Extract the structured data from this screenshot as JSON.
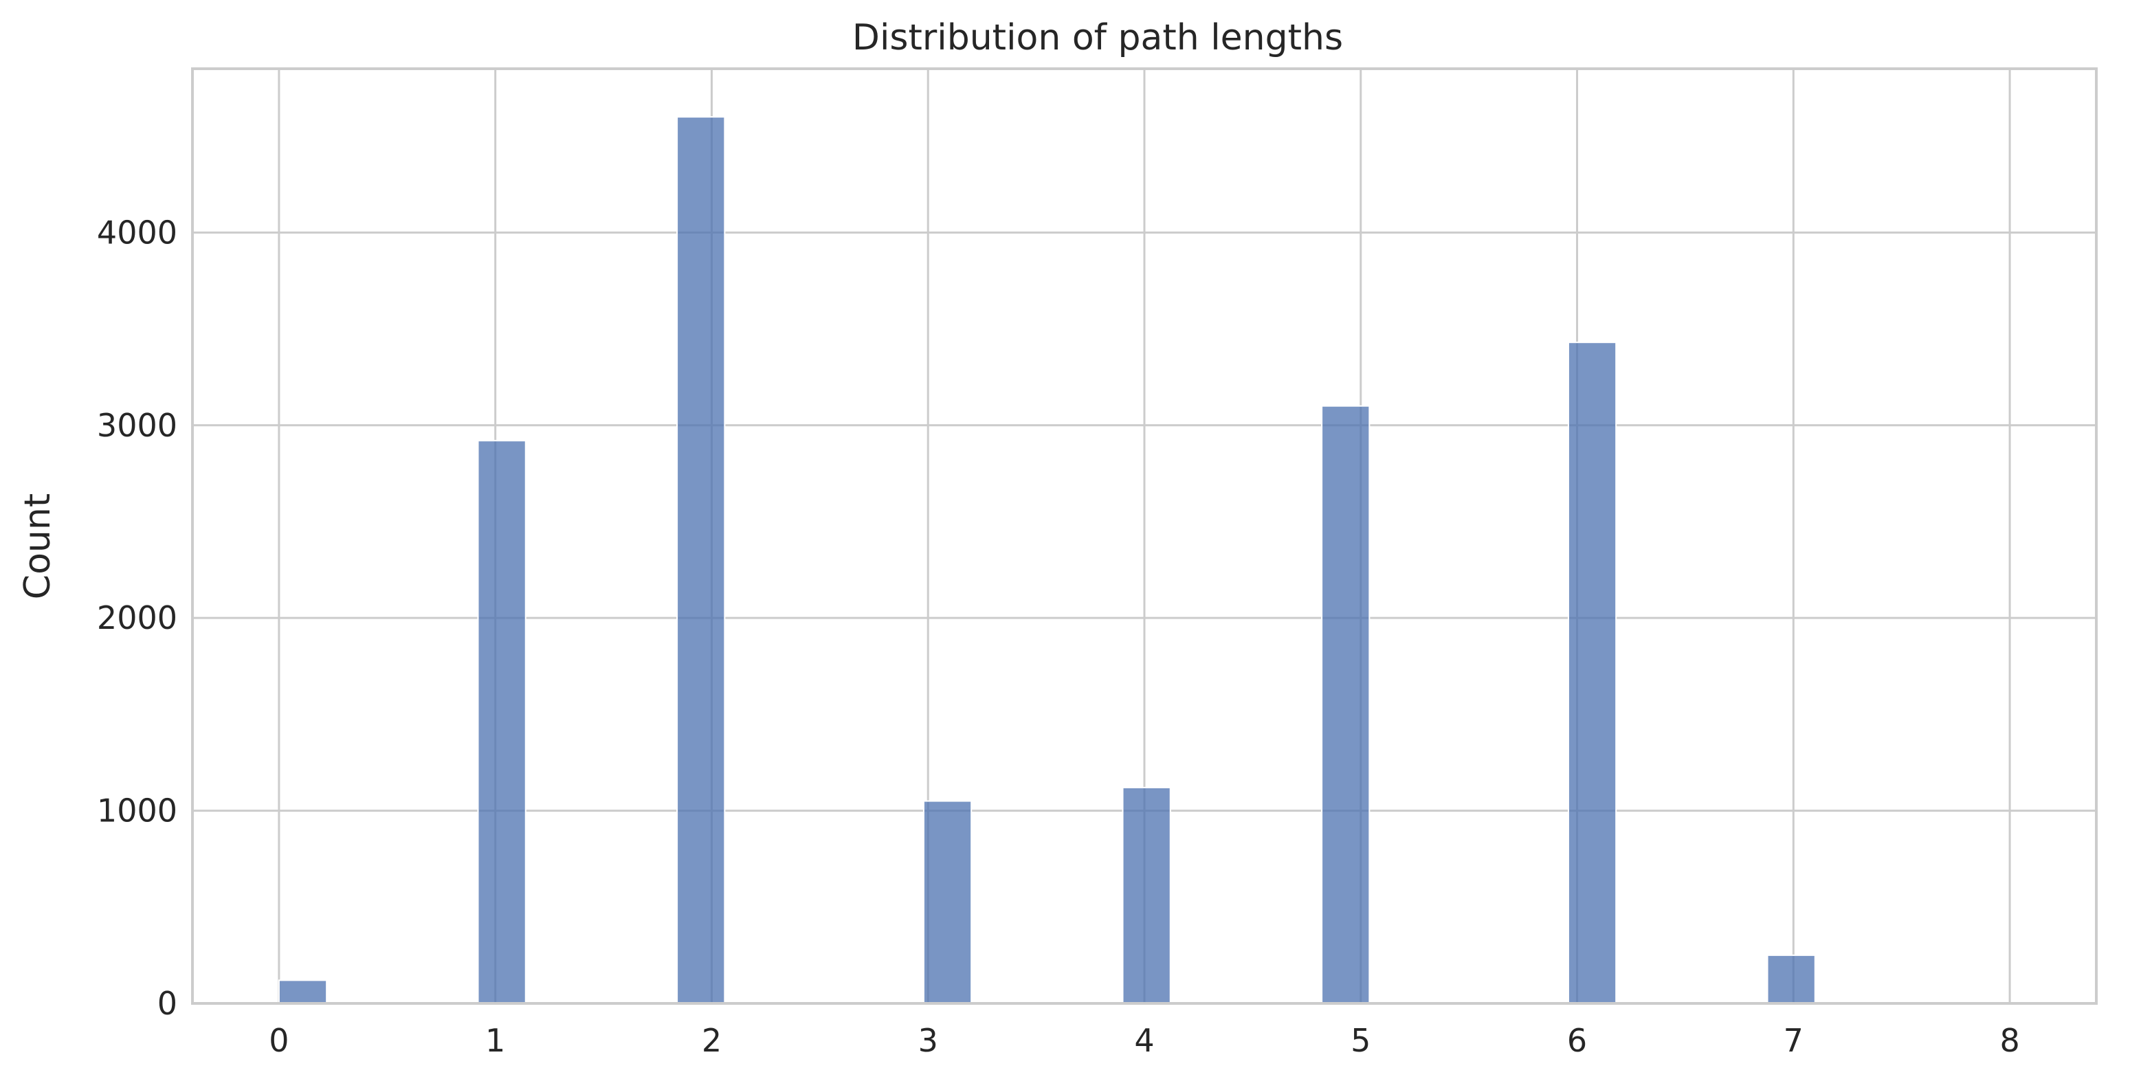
{
  "chart_data": {
    "type": "bar",
    "title": "Distribution of path lengths",
    "xlabel": "",
    "ylabel": "Count",
    "x_ticks": [
      0,
      1,
      2,
      3,
      4,
      5,
      6,
      7,
      8
    ],
    "y_ticks": [
      0,
      1000,
      2000,
      3000,
      4000
    ],
    "xlim": [
      -0.4,
      8.4
    ],
    "ylim": [
      0,
      4850
    ],
    "bin_width": 0.22,
    "bars": [
      {
        "left": 0.0,
        "value": 120
      },
      {
        "left": 0.92,
        "value": 2920
      },
      {
        "left": 1.84,
        "value": 4600
      },
      {
        "left": 2.98,
        "value": 1050
      },
      {
        "left": 3.9,
        "value": 1120
      },
      {
        "left": 4.82,
        "value": 3100
      },
      {
        "left": 5.96,
        "value": 3430
      },
      {
        "left": 6.88,
        "value": 250
      }
    ],
    "grid": true,
    "bar_color": "#4c72b0",
    "bar_opacity": 0.75
  }
}
